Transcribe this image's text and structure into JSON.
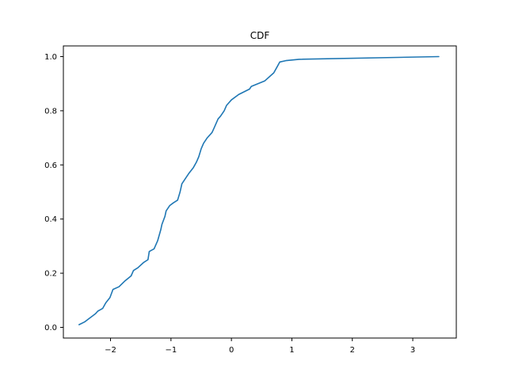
{
  "chart_data": {
    "type": "line",
    "title": "CDF",
    "xlabel": "",
    "ylabel": "",
    "xlim": [
      -2.78,
      3.72
    ],
    "ylim": [
      -0.0395,
      1.0395
    ],
    "xticks": [
      -2,
      -1,
      0,
      1,
      2,
      3
    ],
    "xtick_labels": [
      "−2",
      "−1",
      "0",
      "1",
      "2",
      "3"
    ],
    "yticks": [
      0.0,
      0.2,
      0.4,
      0.6,
      0.8,
      1.0
    ],
    "ytick_labels": [
      "0.0",
      "0.2",
      "0.4",
      "0.6",
      "0.8",
      "1.0"
    ],
    "grid": false,
    "legend": "none",
    "series": [
      {
        "color": "#1f77b4",
        "x": [
          -2.52,
          -2.43,
          -2.37,
          -2.25,
          -2.21,
          -2.13,
          -2.08,
          -2.01,
          -1.96,
          -1.86,
          -1.77,
          -1.66,
          -1.62,
          -1.55,
          -1.45,
          -1.38,
          -1.36,
          -1.28,
          -1.22,
          -1.17,
          -1.15,
          -1.1,
          -1.08,
          -1.02,
          -0.96,
          -0.89,
          -0.85,
          -0.82,
          -0.76,
          -0.7,
          -0.63,
          -0.58,
          -0.54,
          -0.5,
          -0.46,
          -0.4,
          -0.32,
          -0.28,
          -0.22,
          -0.18,
          -0.12,
          -0.08,
          0.0,
          0.12,
          0.3,
          0.33,
          0.55,
          0.7,
          0.75,
          0.8,
          0.9,
          1.12,
          3.43
        ],
        "y": [
          0.01,
          0.02,
          0.03,
          0.05,
          0.06,
          0.07,
          0.09,
          0.11,
          0.14,
          0.15,
          0.17,
          0.19,
          0.21,
          0.22,
          0.24,
          0.25,
          0.28,
          0.29,
          0.32,
          0.36,
          0.38,
          0.41,
          0.43,
          0.45,
          0.46,
          0.47,
          0.5,
          0.53,
          0.55,
          0.57,
          0.59,
          0.61,
          0.63,
          0.66,
          0.68,
          0.7,
          0.72,
          0.74,
          0.77,
          0.78,
          0.8,
          0.82,
          0.84,
          0.86,
          0.88,
          0.89,
          0.91,
          0.94,
          0.96,
          0.98,
          0.985,
          0.99,
          1.0
        ]
      }
    ]
  }
}
